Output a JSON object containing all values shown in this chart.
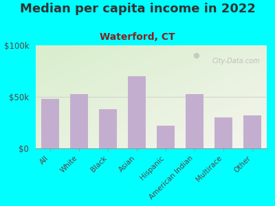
{
  "title": "Median per capita income in 2022",
  "subtitle": "Waterford, CT",
  "categories": [
    "All",
    "White",
    "Black",
    "Asian",
    "Hispanic",
    "American Indian",
    "Multirace",
    "Other"
  ],
  "values": [
    48000,
    53000,
    38000,
    70000,
    22000,
    53000,
    30000,
    32000
  ],
  "bar_color": "#c4aed0",
  "background_outer": "#00FFFF",
  "grad_color_topleft": "#d8eecc",
  "grad_color_bottomright": "#f5f5ee",
  "title_color": "#333333",
  "subtitle_color": "#8B2020",
  "tick_color": "#5a4040",
  "ylim": [
    0,
    100000
  ],
  "ytick_labels": [
    "$0",
    "$50k",
    "$100k"
  ],
  "ytick_values": [
    0,
    50000,
    100000
  ],
  "watermark": "City-Data.com",
  "title_fontsize": 13,
  "subtitle_fontsize": 10,
  "tick_fontsize": 8.5,
  "xtick_fontsize": 7.5
}
